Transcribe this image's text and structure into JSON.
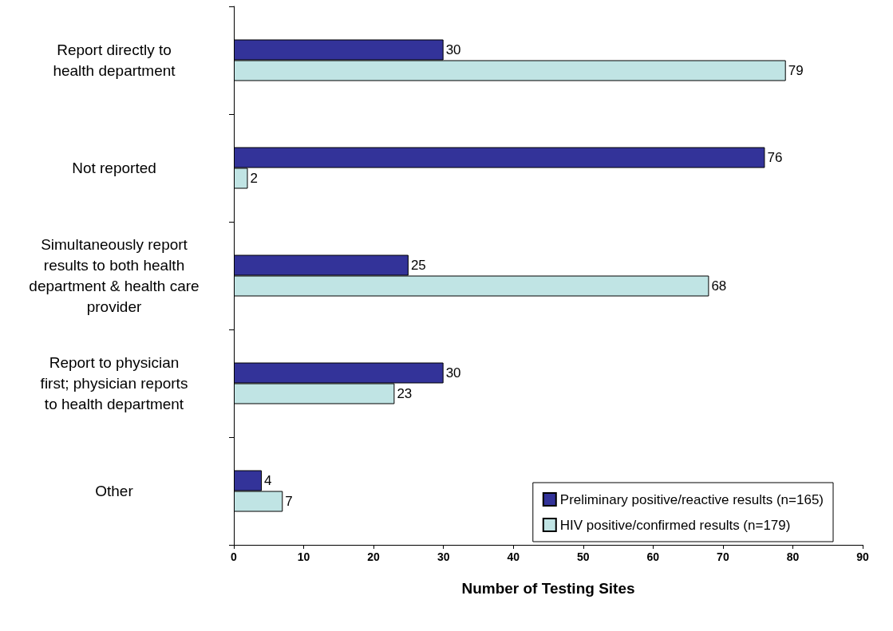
{
  "chart_data": {
    "type": "bar",
    "orientation": "horizontal",
    "xlabel": "Number of Testing Sites",
    "categories": [
      "Report directly to health department",
      "Not reported",
      "Simultaneously report results to both health department & health care provider",
      "Report to physician first; physician reports to health department",
      "Other"
    ],
    "series": [
      {
        "name": "Preliminary positive/reactive results (n=165)",
        "color": "#333399",
        "values": [
          30,
          76,
          25,
          30,
          4
        ]
      },
      {
        "name": "HIV positive/confirmed results (n=179)",
        "color": "#c0e4e4",
        "values": [
          79,
          2,
          68,
          23,
          7
        ]
      }
    ],
    "xlim": [
      0,
      90
    ],
    "xticks": [
      0,
      10,
      20,
      30,
      40,
      50,
      60,
      70,
      80,
      90
    ],
    "data_labels": true,
    "grid": false,
    "legend": "bottom right"
  }
}
